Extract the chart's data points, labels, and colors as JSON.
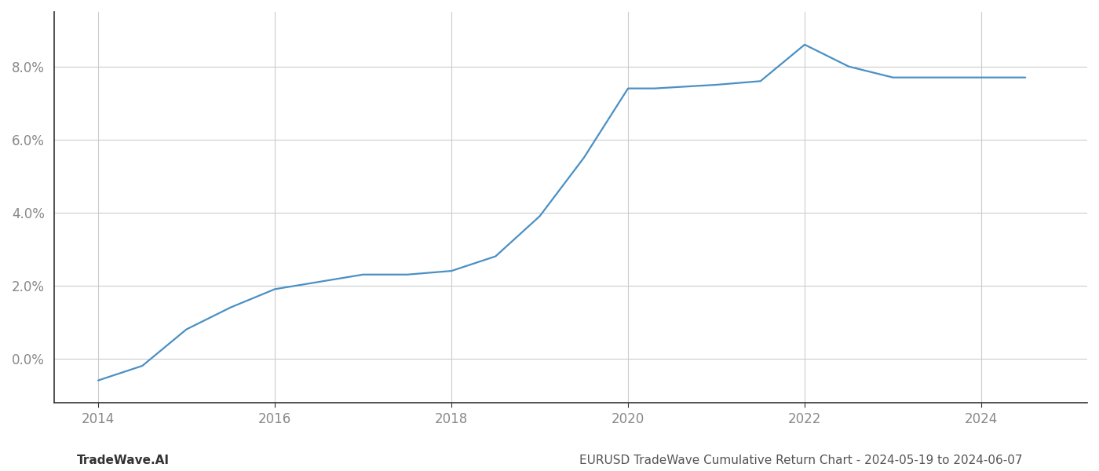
{
  "x": [
    2014,
    2014.5,
    2015,
    2015.5,
    2016,
    2016.5,
    2017,
    2017.5,
    2018,
    2018.5,
    2019,
    2019.5,
    2020,
    2020.3,
    2021,
    2021.5,
    2022,
    2022.5,
    2023,
    2023.5,
    2024,
    2024.5
  ],
  "y": [
    -0.006,
    -0.002,
    0.008,
    0.014,
    0.019,
    0.021,
    0.023,
    0.023,
    0.024,
    0.028,
    0.039,
    0.055,
    0.074,
    0.074,
    0.075,
    0.076,
    0.086,
    0.08,
    0.077,
    0.077,
    0.077,
    0.077
  ],
  "line_color": "#4a90c4",
  "line_width": 1.6,
  "background_color": "#ffffff",
  "grid_color": "#cccccc",
  "footer_left": "TradeWave.AI",
  "footer_right": "EURUSD TradeWave Cumulative Return Chart - 2024-05-19 to 2024-06-07",
  "ylim": [
    -0.012,
    0.095
  ],
  "xlim": [
    2013.5,
    2025.2
  ],
  "yticks": [
    0.0,
    0.02,
    0.04,
    0.06,
    0.08
  ],
  "xticks": [
    2014,
    2016,
    2018,
    2020,
    2022,
    2024
  ],
  "tick_label_color": "#888888",
  "footer_fontsize": 11,
  "tick_fontsize": 12,
  "spine_color": "#333333"
}
